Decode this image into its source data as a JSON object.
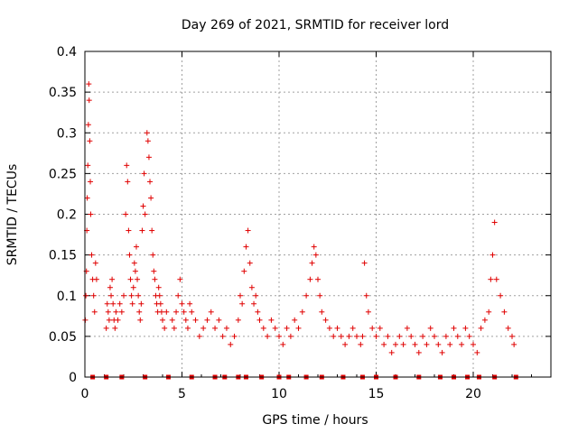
{
  "chart_data": {
    "type": "scatter",
    "title": "Day 269 of 2021, SRMTID for receiver lord",
    "xlabel": "GPS time / hours",
    "ylabel": "SRMTID / TECUs",
    "xlim": [
      0,
      24
    ],
    "ylim": [
      0,
      0.4
    ],
    "x_ticks": [
      0,
      5,
      10,
      15,
      20
    ],
    "x_tick_labels": [
      "0",
      "5",
      "10",
      "15",
      "20"
    ],
    "y_ticks": [
      0,
      0.05,
      0.1,
      0.15,
      0.2,
      0.25,
      0.3,
      0.35,
      0.4
    ],
    "y_tick_labels": [
      "0",
      "0.05",
      "0.1",
      "0.15",
      "0.2",
      "0.25",
      "0.3",
      "0.35",
      "0.4"
    ],
    "grid": true,
    "series": [
      {
        "name": "SRMTID",
        "marker": "plus",
        "color": "#e00000",
        "x": [
          0.02,
          0.05,
          0.08,
          0.1,
          0.12,
          0.15,
          0.18,
          0.2,
          0.22,
          0.25,
          0.28,
          0.3,
          0.35,
          0.4,
          0.45,
          0.5,
          0.55,
          0.6,
          1.1,
          1.15,
          1.2,
          1.25,
          1.3,
          1.35,
          1.4,
          1.45,
          1.5,
          1.55,
          1.6,
          1.7,
          1.8,
          1.9,
          2.0,
          2.1,
          2.15,
          2.2,
          2.25,
          2.3,
          2.35,
          2.4,
          2.45,
          2.5,
          2.55,
          2.6,
          2.65,
          2.7,
          2.75,
          2.8,
          2.85,
          2.9,
          2.95,
          3.0,
          3.05,
          3.1,
          3.2,
          3.25,
          3.3,
          3.35,
          3.4,
          3.45,
          3.5,
          3.55,
          3.6,
          3.65,
          3.7,
          3.75,
          3.8,
          3.85,
          3.9,
          3.95,
          4.0,
          4.1,
          4.2,
          4.5,
          4.6,
          4.7,
          4.8,
          4.9,
          5.0,
          5.1,
          5.2,
          5.3,
          5.4,
          5.5,
          5.7,
          5.9,
          6.1,
          6.3,
          6.5,
          6.7,
          6.9,
          7.1,
          7.3,
          7.5,
          7.7,
          7.9,
          8.0,
          8.1,
          8.2,
          8.3,
          8.4,
          8.5,
          8.6,
          8.7,
          8.8,
          8.9,
          9.0,
          9.2,
          9.4,
          9.6,
          9.8,
          10.0,
          10.2,
          10.4,
          10.6,
          10.8,
          11.0,
          11.2,
          11.4,
          11.6,
          11.7,
          11.8,
          11.9,
          12.0,
          12.1,
          12.2,
          12.4,
          12.6,
          12.8,
          13.0,
          13.2,
          13.4,
          13.6,
          13.8,
          14.0,
          14.2,
          14.3,
          14.4,
          14.5,
          14.6,
          14.8,
          15.0,
          15.2,
          15.4,
          15.6,
          15.8,
          16.0,
          16.2,
          16.4,
          16.6,
          16.8,
          17.0,
          17.2,
          17.4,
          17.6,
          17.8,
          18.0,
          18.2,
          18.4,
          18.6,
          18.8,
          19.0,
          19.2,
          19.4,
          19.6,
          19.8,
          20.0,
          20.2,
          20.4,
          20.6,
          20.8,
          20.9,
          21.0,
          21.1,
          21.2,
          21.4,
          21.6,
          21.8,
          22.0,
          22.1
        ],
        "y": [
          0.07,
          0.1,
          0.13,
          0.18,
          0.22,
          0.26,
          0.31,
          0.36,
          0.34,
          0.29,
          0.24,
          0.2,
          0.15,
          0.12,
          0.1,
          0.08,
          0.14,
          0.12,
          0.06,
          0.09,
          0.08,
          0.07,
          0.11,
          0.1,
          0.12,
          0.09,
          0.07,
          0.06,
          0.08,
          0.07,
          0.09,
          0.08,
          0.1,
          0.2,
          0.26,
          0.24,
          0.18,
          0.15,
          0.12,
          0.1,
          0.09,
          0.11,
          0.14,
          0.13,
          0.16,
          0.12,
          0.1,
          0.08,
          0.07,
          0.09,
          0.18,
          0.21,
          0.25,
          0.2,
          0.3,
          0.29,
          0.27,
          0.24,
          0.22,
          0.18,
          0.15,
          0.13,
          0.12,
          0.1,
          0.09,
          0.08,
          0.11,
          0.1,
          0.09,
          0.08,
          0.07,
          0.06,
          0.08,
          0.07,
          0.06,
          0.08,
          0.1,
          0.12,
          0.09,
          0.08,
          0.07,
          0.06,
          0.09,
          0.08,
          0.07,
          0.05,
          0.06,
          0.07,
          0.08,
          0.06,
          0.07,
          0.05,
          0.06,
          0.04,
          0.05,
          0.07,
          0.1,
          0.09,
          0.13,
          0.16,
          0.18,
          0.14,
          0.11,
          0.09,
          0.1,
          0.08,
          0.07,
          0.06,
          0.05,
          0.07,
          0.06,
          0.05,
          0.04,
          0.06,
          0.05,
          0.07,
          0.06,
          0.08,
          0.1,
          0.12,
          0.14,
          0.16,
          0.15,
          0.12,
          0.1,
          0.08,
          0.07,
          0.06,
          0.05,
          0.06,
          0.05,
          0.04,
          0.05,
          0.06,
          0.05,
          0.04,
          0.05,
          0.14,
          0.1,
          0.08,
          0.06,
          0.05,
          0.06,
          0.04,
          0.05,
          0.03,
          0.04,
          0.05,
          0.04,
          0.06,
          0.05,
          0.04,
          0.03,
          0.05,
          0.04,
          0.06,
          0.05,
          0.04,
          0.03,
          0.05,
          0.04,
          0.06,
          0.05,
          0.04,
          0.06,
          0.05,
          0.04,
          0.03,
          0.06,
          0.07,
          0.08,
          0.12,
          0.15,
          0.19,
          0.12,
          0.1,
          0.08,
          0.06,
          0.05,
          0.04
        ],
        "gap_markers_x": [
          0.4,
          1.1,
          1.9,
          3.1,
          4.3,
          5.5,
          6.7,
          7.2,
          7.9,
          8.3,
          9.1,
          10.0,
          10.5,
          11.4,
          12.2,
          13.3,
          14.3,
          15.0,
          16.0,
          17.2,
          18.3,
          19.0,
          19.7,
          20.3,
          21.1,
          22.2
        ]
      }
    ]
  }
}
